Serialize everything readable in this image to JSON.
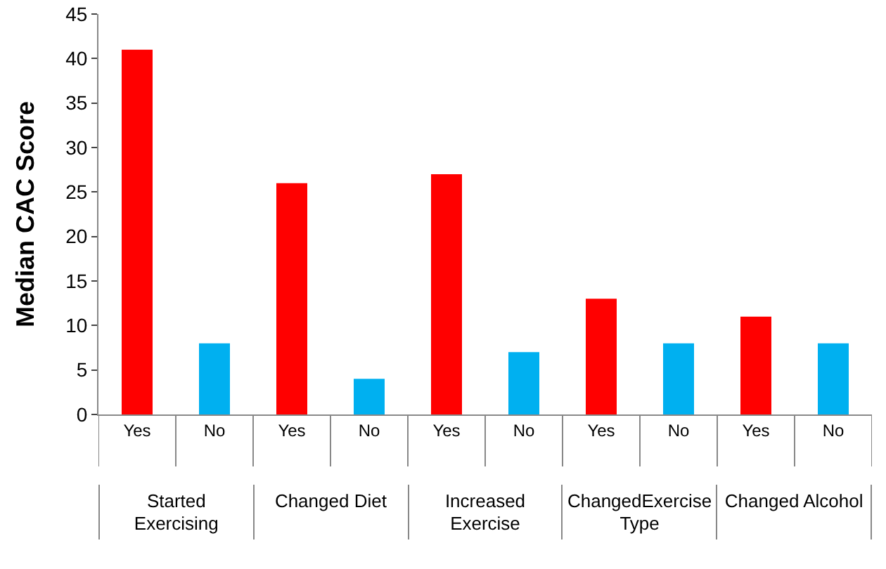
{
  "chart_data": {
    "type": "bar",
    "ylabel": "Median CAC Score",
    "categories": [
      "Yes",
      "No",
      "Yes",
      "No",
      "Yes",
      "No",
      "Yes",
      "No",
      "Yes",
      "No"
    ],
    "values": [
      41,
      8,
      26,
      4,
      27,
      7,
      13,
      8,
      11,
      8
    ],
    "colors": [
      "#ff0000",
      "#00b0f0",
      "#ff0000",
      "#00b0f0",
      "#ff0000",
      "#00b0f0",
      "#ff0000",
      "#00b0f0",
      "#ff0000",
      "#00b0f0"
    ],
    "ylim": [
      0,
      45
    ],
    "yticks": [
      0,
      5,
      10,
      15,
      20,
      25,
      30,
      35,
      40,
      45
    ],
    "grid": false,
    "annotations": [
      "Started Exercising",
      "Changed Diet",
      "Increased Exercise",
      "ChangedExercise Type",
      "Changed Alcohol"
    ]
  }
}
